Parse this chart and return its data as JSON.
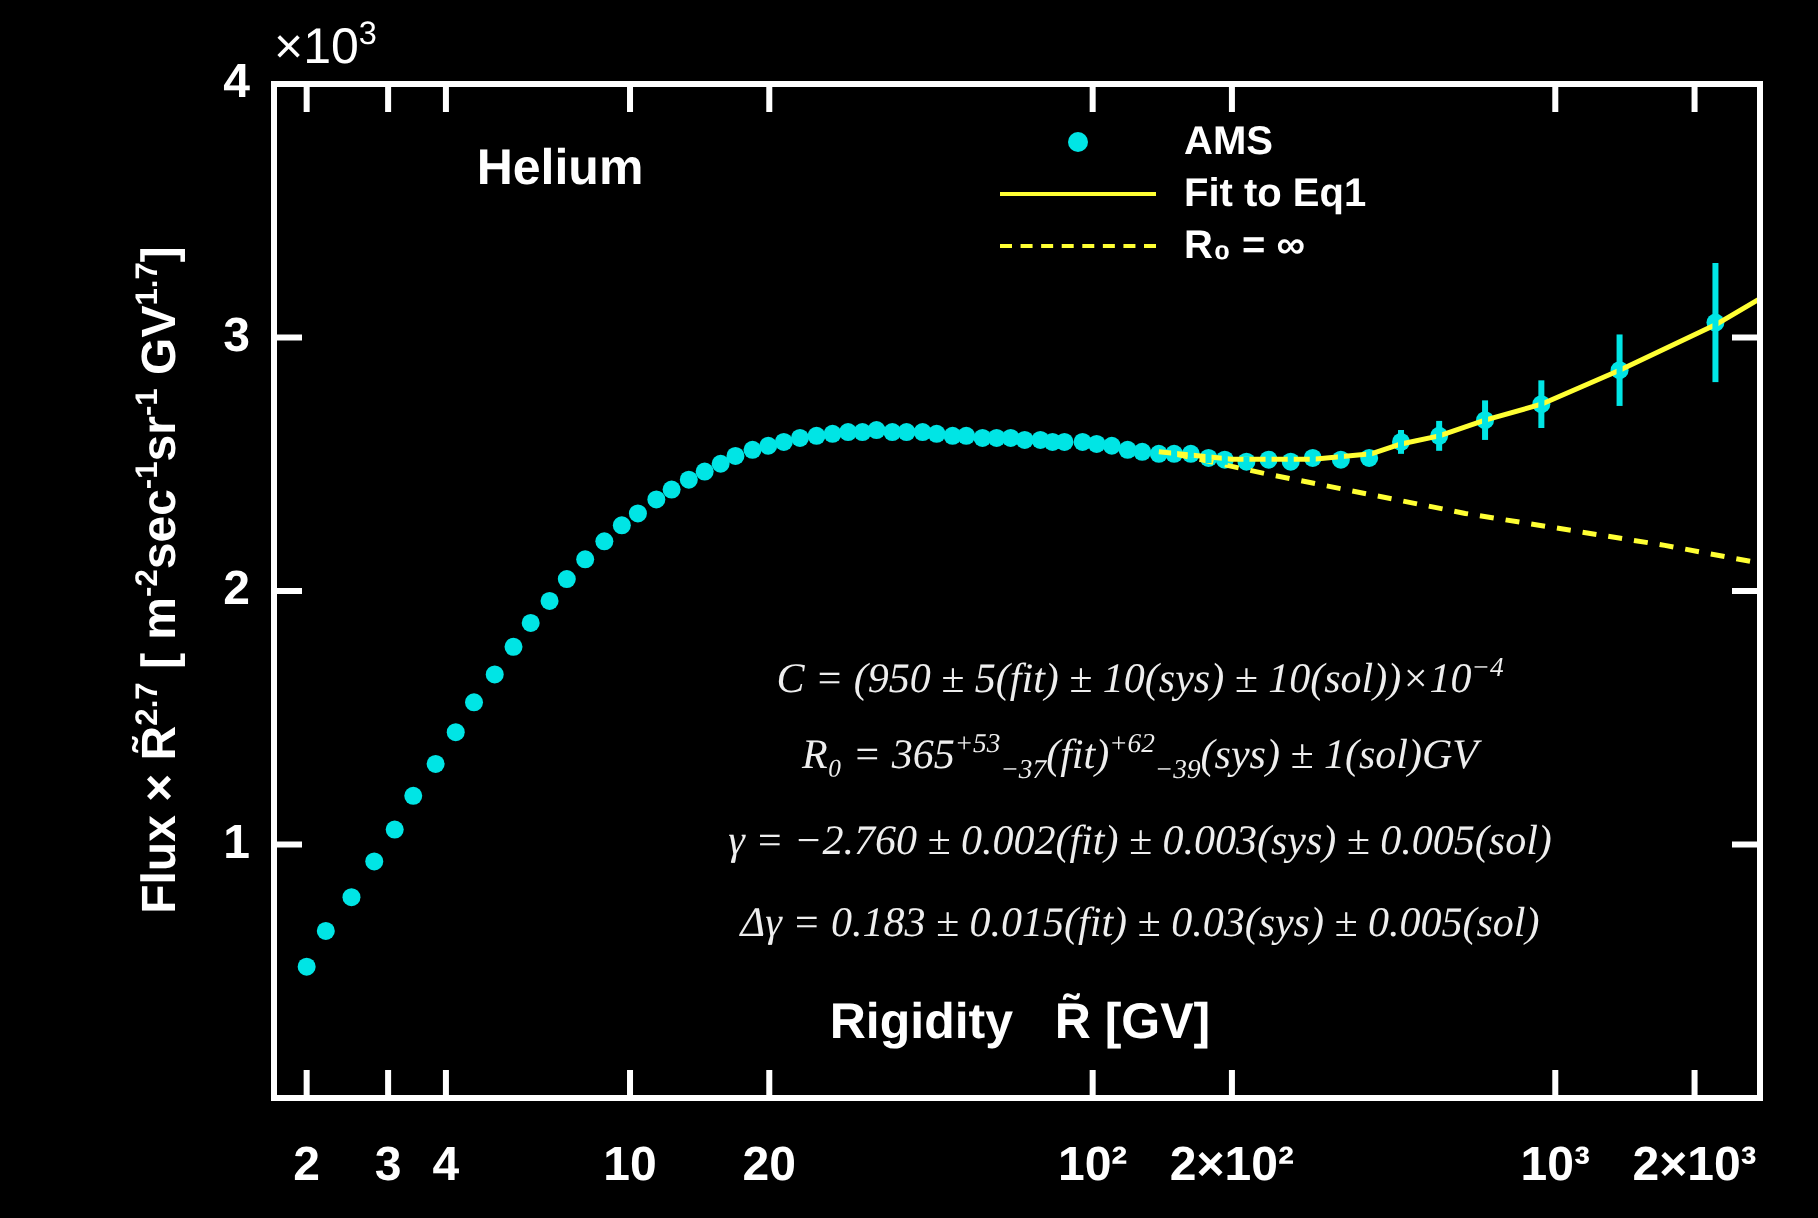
{
  "chart_data": {
    "type": "scatter",
    "xlabel": "Rigidity   R̃ [GV]",
    "ylabel": "Flux × R̃$^{2.7}$ [ m$^{-2}$sec$^{-1}$sr$^{-1}$ GV$^{1.7}$]",
    "log": "x",
    "grid": false,
    "legend": "top right",
    "xlim": [
      1.7,
      2770
    ],
    "xticks": [
      2,
      3,
      4,
      10,
      20,
      {
        "value": 100,
        "label": "10²"
      },
      {
        "value": 200,
        "label": "2×10²"
      },
      {
        "value": 1000,
        "label": "10³"
      },
      {
        "value": 2000,
        "label": "2×10³"
      }
    ],
    "ylim": [
      0,
      4
    ],
    "yticks": [
      1,
      2,
      3,
      4
    ],
    "annotations": [
      "×10$^{3}$",
      "Helium",
      "C = (950 ± 5(fit) ± 10(sys) ± 10(sol))×10$^{−4}$",
      "R₀ = 365$^{+53}$$_{−37}$(fit)$^{+62}$$_{−39}$(sys) ± 1(sol)GV",
      "γ = −2.760 ± 0.002(fit) ± 0.003(sys) ± 0.005(sol)",
      "Δγ = 0.183 ± 0.015(fit) ± 0.03(sys) ± 0.005(sol)"
    ],
    "series": [
      {
        "name": "AMS",
        "type": "scatter",
        "marker": "circle",
        "color": "#00e5e5",
        "x": [
          2.0,
          2.2,
          2.5,
          2.8,
          3.1,
          3.4,
          3.8,
          4.2,
          4.6,
          5.1,
          5.6,
          6.1,
          6.7,
          7.3,
          8.0,
          8.8,
          9.6,
          10.4,
          11.4,
          12.3,
          13.4,
          14.5,
          15.7,
          16.9,
          18.4,
          19.9,
          21.5,
          23.3,
          25.3,
          27.4,
          29.6,
          31.8,
          34.1,
          36.9,
          39.6,
          42.9,
          46.0,
          49.8,
          53.3,
          57.8,
          62.0,
          66.5,
          71.3,
          77.1,
          81.9,
          86.9,
          95.1,
          102,
          110,
          119,
          128,
          139,
          150,
          163,
          178,
          193,
          215,
          240,
          268,
          299,
          344,
          396,
          464,
          561,
          705,
          933,
          1377,
          2219
        ],
        "values": [
          0.518,
          0.659,
          0.792,
          0.933,
          1.059,
          1.192,
          1.318,
          1.443,
          1.561,
          1.671,
          1.78,
          1.874,
          1.961,
          2.047,
          2.125,
          2.196,
          2.259,
          2.306,
          2.361,
          2.4,
          2.439,
          2.471,
          2.502,
          2.533,
          2.557,
          2.573,
          2.588,
          2.604,
          2.612,
          2.62,
          2.627,
          2.627,
          2.635,
          2.627,
          2.627,
          2.627,
          2.62,
          2.612,
          2.612,
          2.604,
          2.604,
          2.604,
          2.596,
          2.596,
          2.588,
          2.588,
          2.588,
          2.58,
          2.573,
          2.557,
          2.549,
          2.541,
          2.541,
          2.541,
          2.525,
          2.518,
          2.51,
          2.518,
          2.51,
          2.525,
          2.518,
          2.525,
          2.588,
          2.612,
          2.674,
          2.737,
          2.871,
          3.059
        ],
        "errors": [
          null,
          null,
          null,
          null,
          null,
          null,
          null,
          null,
          null,
          null,
          null,
          null,
          null,
          null,
          null,
          null,
          null,
          null,
          null,
          null,
          null,
          null,
          null,
          null,
          null,
          null,
          null,
          null,
          null,
          null,
          null,
          null,
          null,
          null,
          null,
          null,
          null,
          null,
          null,
          null,
          null,
          null,
          null,
          null,
          null,
          null,
          null,
          null,
          null,
          null,
          null,
          null,
          0.016,
          0.016,
          0.02,
          0.02,
          0.02,
          0.024,
          0.024,
          0.024,
          0.024,
          0.031,
          0.047,
          0.059,
          0.078,
          0.094,
          0.141,
          0.235
        ]
      },
      {
        "name": "Fit to Eq1",
        "type": "line",
        "line_style": "solid",
        "marker": "none",
        "color": "#ffff33",
        "x": [
          139,
          200,
          300,
          400,
          464,
          561,
          705,
          933,
          1377,
          2219,
          2770
        ],
        "values": [
          2.549,
          2.52,
          2.52,
          2.541,
          2.58,
          2.612,
          2.674,
          2.737,
          2.871,
          3.05,
          3.153
        ]
      },
      {
        "name": "R₀ = ∞",
        "type": "line",
        "line_style": "dashed",
        "marker": "none",
        "color": "#ffff33",
        "x": [
          150,
          236,
          639,
          1725,
          2770
        ],
        "values": [
          2.541,
          2.463,
          2.306,
          2.18,
          2.11
        ]
      }
    ]
  }
}
